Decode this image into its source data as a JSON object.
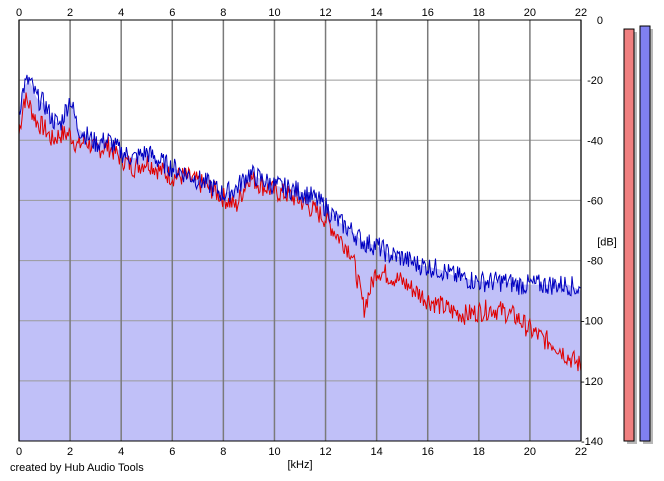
{
  "credit": "created by Hub Audio Tools",
  "chart_data": {
    "type": "line",
    "title": "",
    "xlabel": "[kHz]",
    "ylabel": "[dB]",
    "xlim": [
      0,
      22
    ],
    "ylim": [
      -140,
      0
    ],
    "x_ticks": [
      0,
      2,
      4,
      6,
      8,
      10,
      12,
      14,
      16,
      18,
      20,
      22
    ],
    "y_ticks": [
      0,
      -20,
      -40,
      -60,
      -80,
      -100,
      -120,
      -140
    ],
    "grid": true,
    "background_fill": "#c0c0f8",
    "series": [
      {
        "color": "#0000c0",
        "x": [
          0,
          0.2,
          0.4,
          0.7,
          1,
          1.3,
          1.6,
          2,
          2.3,
          2.6,
          3,
          3.5,
          4,
          4.5,
          5,
          5.5,
          6,
          6.5,
          7,
          7.5,
          8,
          8.5,
          9,
          9.5,
          10,
          10.5,
          11,
          11.5,
          12,
          12.5,
          13,
          13.5,
          14,
          14.5,
          15,
          15.5,
          16,
          16.5,
          17,
          17.5,
          18,
          18.5,
          19,
          19.5,
          20,
          20.5,
          21,
          21.5,
          22
        ],
        "values": [
          -30,
          -22,
          -20,
          -26,
          -28,
          -33,
          -35,
          -26,
          -36,
          -38,
          -41,
          -40,
          -44,
          -46,
          -44,
          -47,
          -49,
          -51,
          -53,
          -55,
          -58,
          -56,
          -51,
          -53,
          -55,
          -56,
          -57,
          -59,
          -62,
          -67,
          -70,
          -74,
          -75,
          -78,
          -79,
          -81,
          -82,
          -83,
          -85,
          -86,
          -87,
          -87,
          -87,
          -88,
          -88,
          -88,
          -88,
          -88,
          -90
        ]
      },
      {
        "color": "#e00000",
        "x": [
          0,
          0.2,
          0.4,
          0.7,
          1,
          1.3,
          1.6,
          2,
          2.3,
          2.6,
          3,
          3.5,
          4,
          4.5,
          5,
          5.5,
          6,
          6.5,
          7,
          7.5,
          8,
          8.5,
          9,
          9.5,
          10,
          10.5,
          11,
          11.5,
          12,
          12.5,
          13,
          13.3,
          13.5,
          14,
          14.5,
          15,
          15.5,
          16,
          16.5,
          17,
          17.5,
          18,
          18.5,
          19,
          19.5,
          20,
          20.5,
          21,
          21.5,
          22
        ],
        "values": [
          -38,
          -26,
          -28,
          -34,
          -36,
          -40,
          -38,
          -38,
          -42,
          -40,
          -43,
          -42,
          -46,
          -49,
          -47,
          -50,
          -52,
          -52,
          -54,
          -56,
          -59,
          -62,
          -52,
          -55,
          -57,
          -58,
          -60,
          -63,
          -66,
          -72,
          -77,
          -88,
          -96,
          -83,
          -85,
          -87,
          -90,
          -93,
          -95,
          -97,
          -98,
          -97,
          -96,
          -97,
          -99,
          -103,
          -106,
          -108,
          -112,
          -115
        ]
      }
    ],
    "level_meters": [
      {
        "color": "#f08080",
        "level_db": -3
      },
      {
        "color": "#8080f0",
        "level_db": -2
      }
    ]
  }
}
